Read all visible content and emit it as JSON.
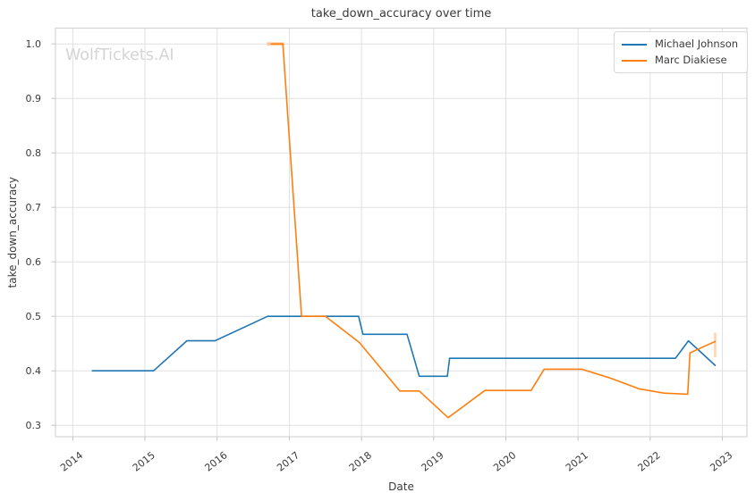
{
  "watermark": "WolfTickets.AI",
  "chart_data": {
    "type": "line",
    "title": "take_down_accuracy over time",
    "xlabel": "Date",
    "ylabel": "take_down_accuracy",
    "grid": true,
    "legend_position": "upper right",
    "xlim": [
      2013.76,
      2023.34
    ],
    "ylim": [
      0.279,
      1.029
    ],
    "x_ticks": [
      2014,
      2015,
      2016,
      2017,
      2018,
      2019,
      2020,
      2021,
      2022,
      2023
    ],
    "y_ticks": [
      0.3,
      0.4,
      0.5,
      0.6,
      0.7,
      0.8,
      0.9,
      1.0
    ],
    "series": [
      {
        "name": "Michael Johnson",
        "color": "#1f77b4",
        "points": [
          [
            2014.27,
            0.4
          ],
          [
            2015.12,
            0.4
          ],
          [
            2015.58,
            0.455
          ],
          [
            2015.97,
            0.455
          ],
          [
            2016.7,
            0.5
          ],
          [
            2017.96,
            0.5
          ],
          [
            2018.02,
            0.467
          ],
          [
            2018.63,
            0.467
          ],
          [
            2018.8,
            0.39
          ],
          [
            2019.19,
            0.39
          ],
          [
            2019.22,
            0.423
          ],
          [
            2022.35,
            0.423
          ],
          [
            2022.53,
            0.455
          ],
          [
            2022.9,
            0.41
          ]
        ]
      },
      {
        "name": "Marc Diakiese",
        "color": "#ff7f0e",
        "points": [
          [
            2016.75,
            1.0
          ],
          [
            2016.91,
            1.0
          ],
          [
            2017.17,
            0.5
          ],
          [
            2017.5,
            0.5
          ],
          [
            2017.97,
            0.452
          ],
          [
            2018.53,
            0.363
          ],
          [
            2018.8,
            0.363
          ],
          [
            2019.2,
            0.314
          ],
          [
            2019.71,
            0.364
          ],
          [
            2020.35,
            0.364
          ],
          [
            2020.53,
            0.403
          ],
          [
            2021.05,
            0.403
          ],
          [
            2021.46,
            0.386
          ],
          [
            2021.84,
            0.367
          ],
          [
            2022.19,
            0.359
          ],
          [
            2022.52,
            0.357
          ],
          [
            2022.55,
            0.433
          ],
          [
            2022.9,
            0.454
          ]
        ]
      }
    ],
    "annotations": [
      {
        "type": "error-bar-horizontal",
        "series": "Marc Diakiese",
        "y": 1.0,
        "x1": 2016.69,
        "x2": 2016.93,
        "color": "#ff7f0e",
        "opacity": 0.35,
        "width": 4
      },
      {
        "type": "error-bar-vertical",
        "series": "Marc Diakiese",
        "x": 2022.9,
        "y1": 0.425,
        "y2": 0.47,
        "color": "#ff7f0e",
        "opacity": 0.35,
        "width": 2.5
      }
    ]
  },
  "style_colors": {
    "grid": "#e0e0e0",
    "spine": "#d4d4d4",
    "tick": "#c4c4c4",
    "text": "#3a3a3a",
    "watermark": "#d4d4d4"
  }
}
